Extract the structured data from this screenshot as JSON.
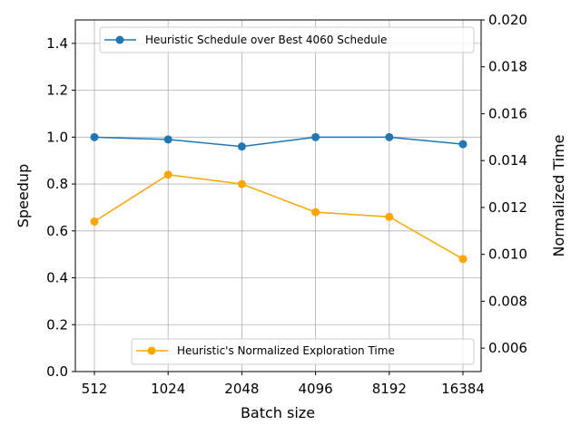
{
  "chart_data": {
    "type": "line",
    "xlabel": "Batch size",
    "ylabel": "Speedup",
    "y2label": "Normalized Time",
    "categories": [
      "512",
      "1024",
      "2048",
      "4096",
      "8192",
      "16384"
    ],
    "ylim": [
      0.0,
      1.5
    ],
    "y2lim": [
      0.005,
      0.02
    ],
    "yticks": [
      "0.0",
      "0.2",
      "0.4",
      "0.6",
      "0.8",
      "1.0",
      "1.2",
      "1.4"
    ],
    "y2ticks": [
      "0.006",
      "0.008",
      "0.010",
      "0.012",
      "0.014",
      "0.016",
      "0.018",
      "0.020"
    ],
    "grid": true,
    "series": [
      {
        "name": "Heuristic Schedule over Best 4060 Schedule",
        "axis": "left",
        "color": "#1f77b4",
        "values": [
          1.0,
          0.99,
          0.96,
          1.0,
          1.0,
          0.97
        ],
        "legend_position": "top-right"
      },
      {
        "name": "Heuristic's Normalized Exploration Time",
        "axis": "right",
        "color": "#ffa500",
        "values": [
          0.0114,
          0.0134,
          0.013,
          0.0118,
          0.0116,
          0.0098
        ],
        "legend_position": "bottom-right"
      }
    ]
  }
}
